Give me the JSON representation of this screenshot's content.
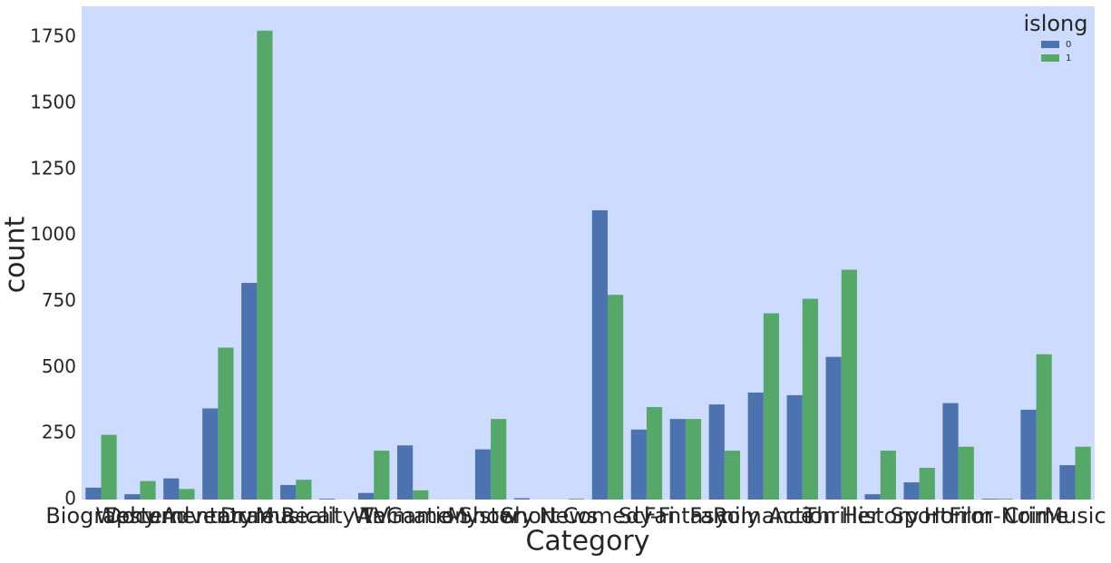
{
  "chart_data": {
    "type": "bar",
    "x_label": "Category",
    "y_label": "count",
    "categories": [
      "Biography",
      "Western",
      "Documentary",
      "Adventure",
      "Drama",
      "Musical",
      "Reality-TV",
      "War",
      "Animation",
      "Game-Show",
      "Mystery",
      "Short",
      "News",
      "Comedy",
      "Sci-Fi",
      "Fantasy",
      "Family",
      "Romance",
      "Action",
      "Thriller",
      "History",
      "Sport",
      "Horror",
      "Film-Noir",
      "Crime",
      "Music"
    ],
    "series": [
      {
        "name": "0",
        "color": "#4c72b0",
        "values": [
          45,
          20,
          80,
          345,
          820,
          55,
          3,
          25,
          205,
          0,
          190,
          5,
          0,
          1095,
          265,
          305,
          360,
          405,
          395,
          540,
          20,
          65,
          365,
          3,
          340,
          130
        ]
      },
      {
        "name": "1",
        "color": "#55a868",
        "values": [
          245,
          70,
          40,
          575,
          1775,
          75,
          0,
          185,
          35,
          0,
          305,
          0,
          3,
          775,
          350,
          305,
          185,
          705,
          760,
          870,
          185,
          120,
          200,
          3,
          550,
          200
        ]
      }
    ],
    "legend_title": "islong",
    "legend": "upper right",
    "ylim": [
      0,
      1867
    ],
    "yticks": [
      0,
      250,
      500,
      750,
      1000,
      1250,
      1500,
      1750
    ],
    "background": "#cddcfe"
  }
}
